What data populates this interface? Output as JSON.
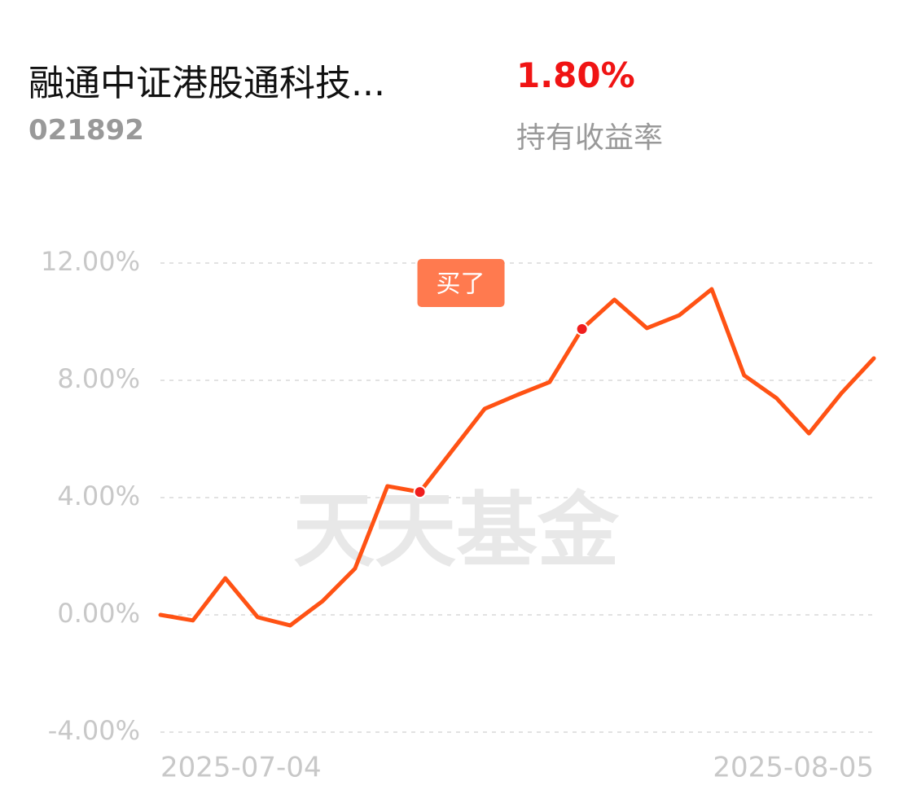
{
  "header": {
    "title": "融通中证港股通科技...",
    "code": "021892",
    "return_value": "1.80%",
    "return_label": "持有收益率"
  },
  "chart_data": {
    "type": "line",
    "categories": [
      "2025-07-04",
      null,
      null,
      null,
      null,
      null,
      null,
      null,
      null,
      null,
      null,
      null,
      null,
      null,
      null,
      null,
      null,
      null,
      null,
      null,
      null,
      null,
      "2025-08-05"
    ],
    "values": [
      0.0,
      -0.19,
      1.25,
      -0.08,
      -0.36,
      0.47,
      1.58,
      4.39,
      4.19,
      5.61,
      7.03,
      7.5,
      7.94,
      9.75,
      10.75,
      9.78,
      10.22,
      11.11,
      8.17,
      7.39,
      6.19,
      7.56,
      8.75
    ],
    "color": "#ff5214",
    "ylim": [
      -4,
      12
    ],
    "yticks": [
      {
        "value": -4,
        "label": "-4.00%"
      },
      {
        "value": 0,
        "label": "0.00%"
      },
      {
        "value": 4,
        "label": "4.00%"
      },
      {
        "value": 8,
        "label": "8.00%"
      },
      {
        "value": 12,
        "label": "12.00%"
      }
    ],
    "grid": true,
    "annotation": {
      "text": "买了",
      "index": 8
    },
    "highlight_points": [
      8,
      13
    ],
    "watermark": "天天基金"
  }
}
